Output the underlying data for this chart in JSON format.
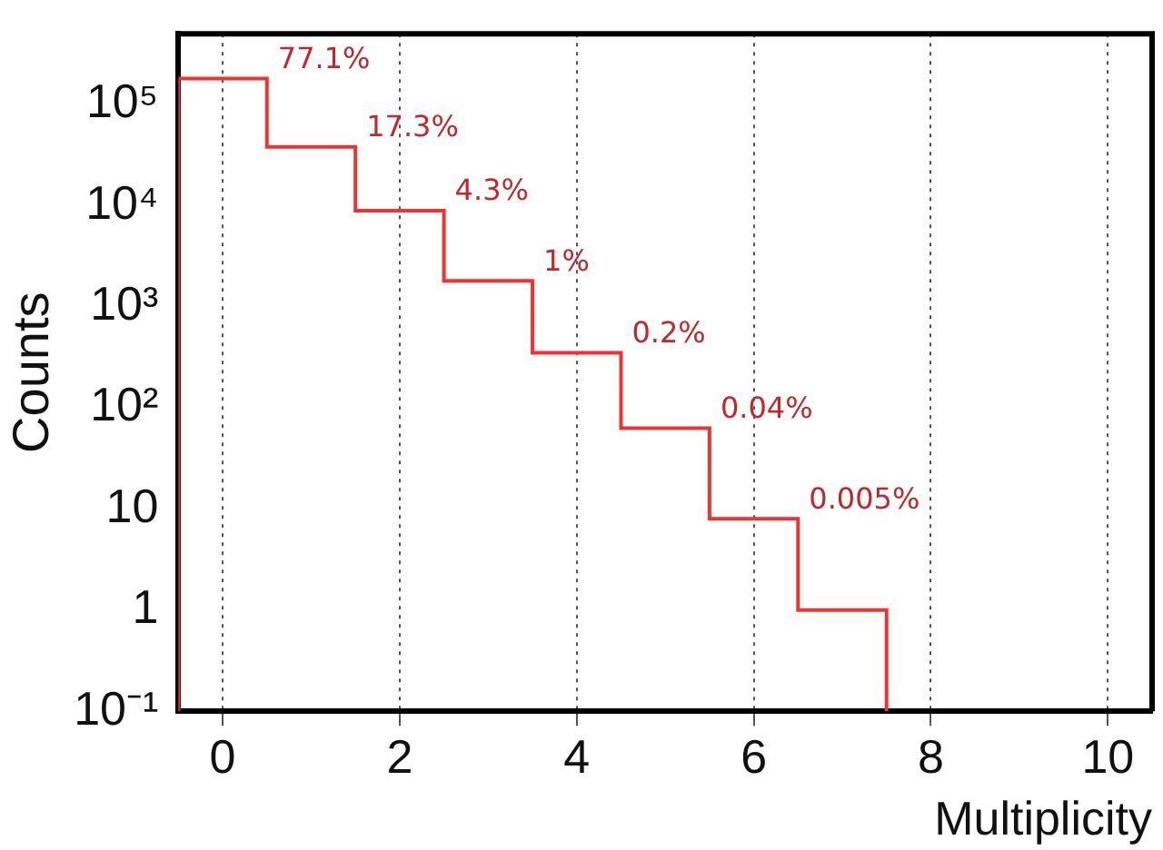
{
  "chart_data": {
    "type": "histogram",
    "xlabel": "Multiplicity",
    "ylabel": "Counts",
    "bins": [
      -0.5,
      0.5,
      1.5,
      2.5,
      3.5,
      4.5,
      5.5,
      6.5,
      7.5
    ],
    "values": [
      180000,
      38000,
      8900,
      1800,
      350,
      63,
      8,
      1
    ],
    "color": "#ee3333",
    "xlim": [
      -0.5,
      10.5
    ],
    "xticks": [
      0,
      2,
      4,
      6,
      8,
      10
    ],
    "ylim": [
      0.1,
      500000
    ],
    "yticks": [
      {
        "value": 0.1,
        "label": "10⁻¹"
      },
      1,
      10,
      {
        "value": 100,
        "label": "10²"
      },
      {
        "value": 1000,
        "label": "10³"
      },
      {
        "value": 10000,
        "label": "10⁴"
      },
      {
        "value": 100000,
        "label": "10⁵"
      }
    ],
    "log": "y",
    "grid": "x",
    "annotations": [
      {
        "text": "77.1%",
        "x": 0.5,
        "y": 180000
      },
      {
        "text": "17.3%",
        "x": 1.5,
        "y": 38000
      },
      {
        "text": "4.3%",
        "x": 2.5,
        "y": 8900
      },
      {
        "text": "1%",
        "x": 3.5,
        "y": 1800
      },
      {
        "text": "0.2%",
        "x": 4.5,
        "y": 350
      },
      {
        "text": "0.04%",
        "x": 5.5,
        "y": 63
      },
      {
        "text": "0.005%",
        "x": 6.5,
        "y": 8
      }
    ]
  }
}
